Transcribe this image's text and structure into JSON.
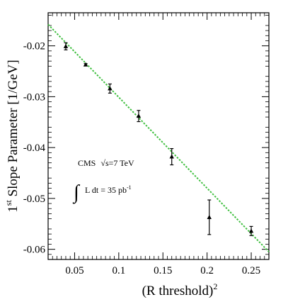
{
  "chart_data": {
    "type": "scatter",
    "xlabel_base": "(R threshold)",
    "xlabel_sup": "2",
    "ylabel_pre": "1",
    "ylabel_sup": "st",
    "ylabel_post": " Slope Parameter [1/GeV]",
    "xlim": [
      0.02,
      0.27
    ],
    "ylim": [
      -0.062,
      -0.0135
    ],
    "x_ticks": [
      {
        "value": 0.05,
        "label": "0.05"
      },
      {
        "value": 0.1,
        "label": "0.1"
      },
      {
        "value": 0.15,
        "label": "0.15"
      },
      {
        "value": 0.2,
        "label": "0.2"
      },
      {
        "value": 0.25,
        "label": "0.25"
      }
    ],
    "y_ticks": [
      {
        "value": -0.02,
        "label": "-0.02"
      },
      {
        "value": -0.03,
        "label": "-0.03"
      },
      {
        "value": -0.04,
        "label": "-0.04"
      },
      {
        "value": -0.05,
        "label": "-0.05"
      },
      {
        "value": -0.06,
        "label": "-0.06"
      }
    ],
    "points": [
      {
        "x": 0.04,
        "y": -0.0201,
        "err": 0.0007
      },
      {
        "x": 0.0625,
        "y": -0.0237,
        "err": 0.0002
      },
      {
        "x": 0.09,
        "y": -0.0284,
        "err": 0.0009
      },
      {
        "x": 0.1225,
        "y": -0.0338,
        "err": 0.0011
      },
      {
        "x": 0.16,
        "y": -0.0418,
        "err": 0.0016
      },
      {
        "x": 0.2025,
        "y": -0.0537,
        "err": 0.0034
      },
      {
        "x": 0.25,
        "y": -0.0564,
        "err": 0.0009
      }
    ],
    "fit_line": {
      "x1": 0.02,
      "y1": -0.0158,
      "x2": 0.27,
      "y2": -0.0605,
      "color": "#3fbf3f"
    },
    "annotation": {
      "experiment": "CMS",
      "energy": "√s=7 TeV",
      "lumi_integral": "∫",
      "lumi_text": "L dt = 35 pb",
      "lumi_sup": "-1"
    }
  }
}
